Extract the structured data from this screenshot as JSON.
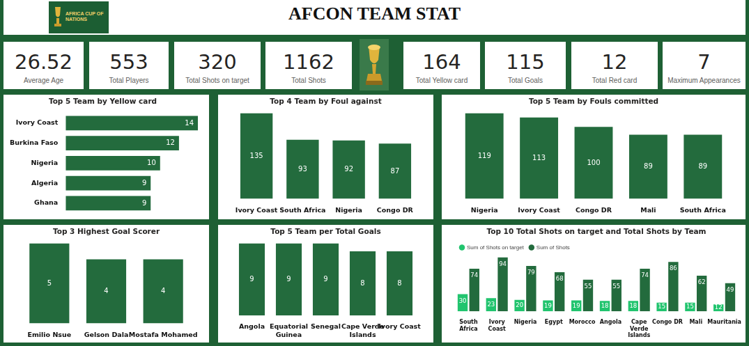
{
  "title": "AFCON TEAM STAT",
  "logo": "AFRICA CUP OF NATIONS",
  "kpis": [
    {
      "value": 26.52,
      "label": "Average Age"
    },
    {
      "value": 553,
      "label": "Total Players"
    },
    {
      "value": 320,
      "label": "Total Shots on target"
    },
    {
      "value": 1162,
      "label": "Total Shots"
    },
    {
      "value": 164,
      "label": "Total Yellow card"
    },
    {
      "value": 115,
      "label": "Total Goals"
    },
    {
      "value": 12,
      "label": "Total Red card"
    },
    {
      "value": 7,
      "label": "Maximum Appearances"
    }
  ],
  "chart_data": [
    {
      "type": "bar",
      "title": "Top 5 Team by Yellow card",
      "orientation": "horizontal",
      "categories": [
        "Ivory Coast",
        "Burkina Faso",
        "Nigeria",
        "Algeria",
        "Ghana"
      ],
      "values": [
        14,
        12,
        10,
        9,
        9
      ],
      "color": "#236b3d",
      "xlim": [
        0,
        14
      ],
      "grid": false,
      "data_labels": true,
      "tick_labels": "y"
    },
    {
      "type": "bar",
      "title": "Top 4 Team by Foul against",
      "categories": [
        "Ivory Coast",
        "South Africa",
        "Nigeria",
        "Congo DR"
      ],
      "values": [
        135,
        93,
        92,
        87
      ],
      "color": "#236b3d",
      "ylim": [
        0,
        135
      ],
      "grid": false,
      "data_labels": true,
      "tick_labels": "x"
    },
    {
      "type": "bar",
      "title": "Top 5 Team by Fouls committed",
      "categories": [
        "Nigeria",
        "Ivory Coast",
        "Congo DR",
        "Mali",
        "South Africa"
      ],
      "values": [
        119,
        113,
        100,
        89,
        89
      ],
      "color": "#236b3d",
      "ylim": [
        0,
        119
      ],
      "grid": false,
      "data_labels": true,
      "tick_labels": "x"
    },
    {
      "type": "bar",
      "title": "Top 3 Highest Goal Scorer",
      "categories": [
        "Emilio Nsue",
        "Gelson Dala",
        "Mostafa Mohamed"
      ],
      "values": [
        5,
        4,
        4
      ],
      "color": "#236b3d",
      "ylim": [
        0,
        5
      ],
      "grid": false,
      "data_labels": true,
      "tick_labels": "x"
    },
    {
      "type": "bar",
      "title": "Top 5 Team per Total Goals",
      "categories": [
        "Angola",
        "Equatorial Guinea",
        "Senegal",
        "Cape Verde Islands",
        "Ivory Coast"
      ],
      "values": [
        9,
        9,
        9,
        8,
        8
      ],
      "color": "#236b3d",
      "ylim": [
        0,
        9
      ],
      "grid": false,
      "data_labels": true,
      "tick_labels": "x"
    },
    {
      "type": "bar",
      "title": "Top 10 Total Shots on target and Total Shots by Team",
      "categories": [
        "South Africa",
        "Ivory Coast",
        "Nigeria",
        "Egypt",
        "Morocco",
        "Angola",
        "Cape Verde Islands",
        "Congo DR",
        "Mali",
        "Mauritania"
      ],
      "series": [
        {
          "name": "Sum of Shots on target",
          "color": "#21c46e",
          "values": [
            30,
            23,
            20,
            19,
            19,
            18,
            18,
            15,
            15,
            12
          ]
        },
        {
          "name": "Sum of Shots",
          "color": "#236b3d",
          "values": [
            74,
            94,
            79,
            68,
            55,
            55,
            74,
            86,
            62,
            49
          ]
        }
      ],
      "ylim": [
        0,
        94
      ],
      "grid": false,
      "data_labels": true,
      "tick_labels": "x",
      "legend": "top-left"
    }
  ]
}
